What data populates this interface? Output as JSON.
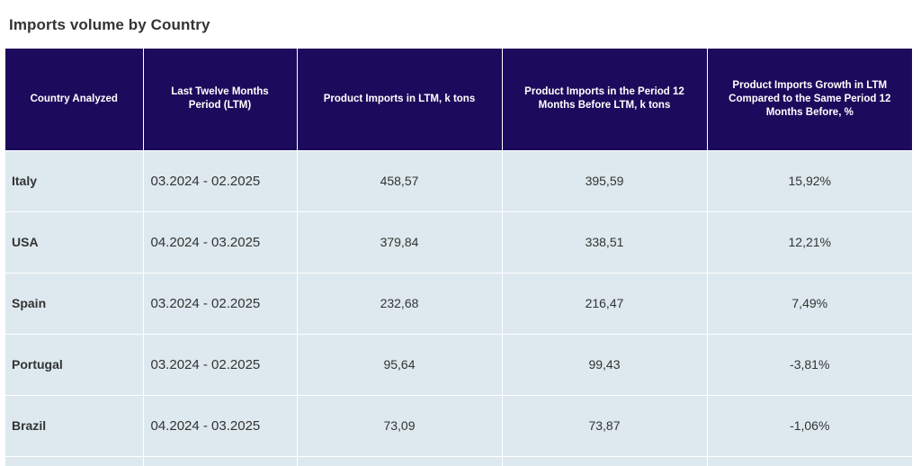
{
  "title": "Imports volume by Country",
  "table": {
    "headers": [
      "Country Analyzed",
      "Last Twelve Months Period (LTM)",
      "Product Imports in LTM, k tons",
      "Product Imports in the Period 12 Months Before LTM, k tons",
      "Product Imports Growth in LTM Compared to the Same Period 12 Months Before, %"
    ],
    "rows": [
      {
        "country": "Italy",
        "period": "03.2024 - 02.2025",
        "ltm": "458,57",
        "prev": "395,59",
        "growth": "15,92%"
      },
      {
        "country": "USA",
        "period": "04.2024 - 03.2025",
        "ltm": "379,84",
        "prev": "338,51",
        "growth": "12,21%"
      },
      {
        "country": "Spain",
        "period": "03.2024 - 02.2025",
        "ltm": "232,68",
        "prev": "216,47",
        "growth": "7,49%"
      },
      {
        "country": "Portugal",
        "period": "03.2024 - 02.2025",
        "ltm": "95,64",
        "prev": "99,43",
        "growth": "-3,81%"
      },
      {
        "country": "Brazil",
        "period": "04.2024 - 03.2025",
        "ltm": "73,09",
        "prev": "73,87",
        "growth": "-1,06%"
      }
    ]
  },
  "colors": {
    "header_bg": "#1c0b5c",
    "row_bg": "#dde9ee"
  }
}
